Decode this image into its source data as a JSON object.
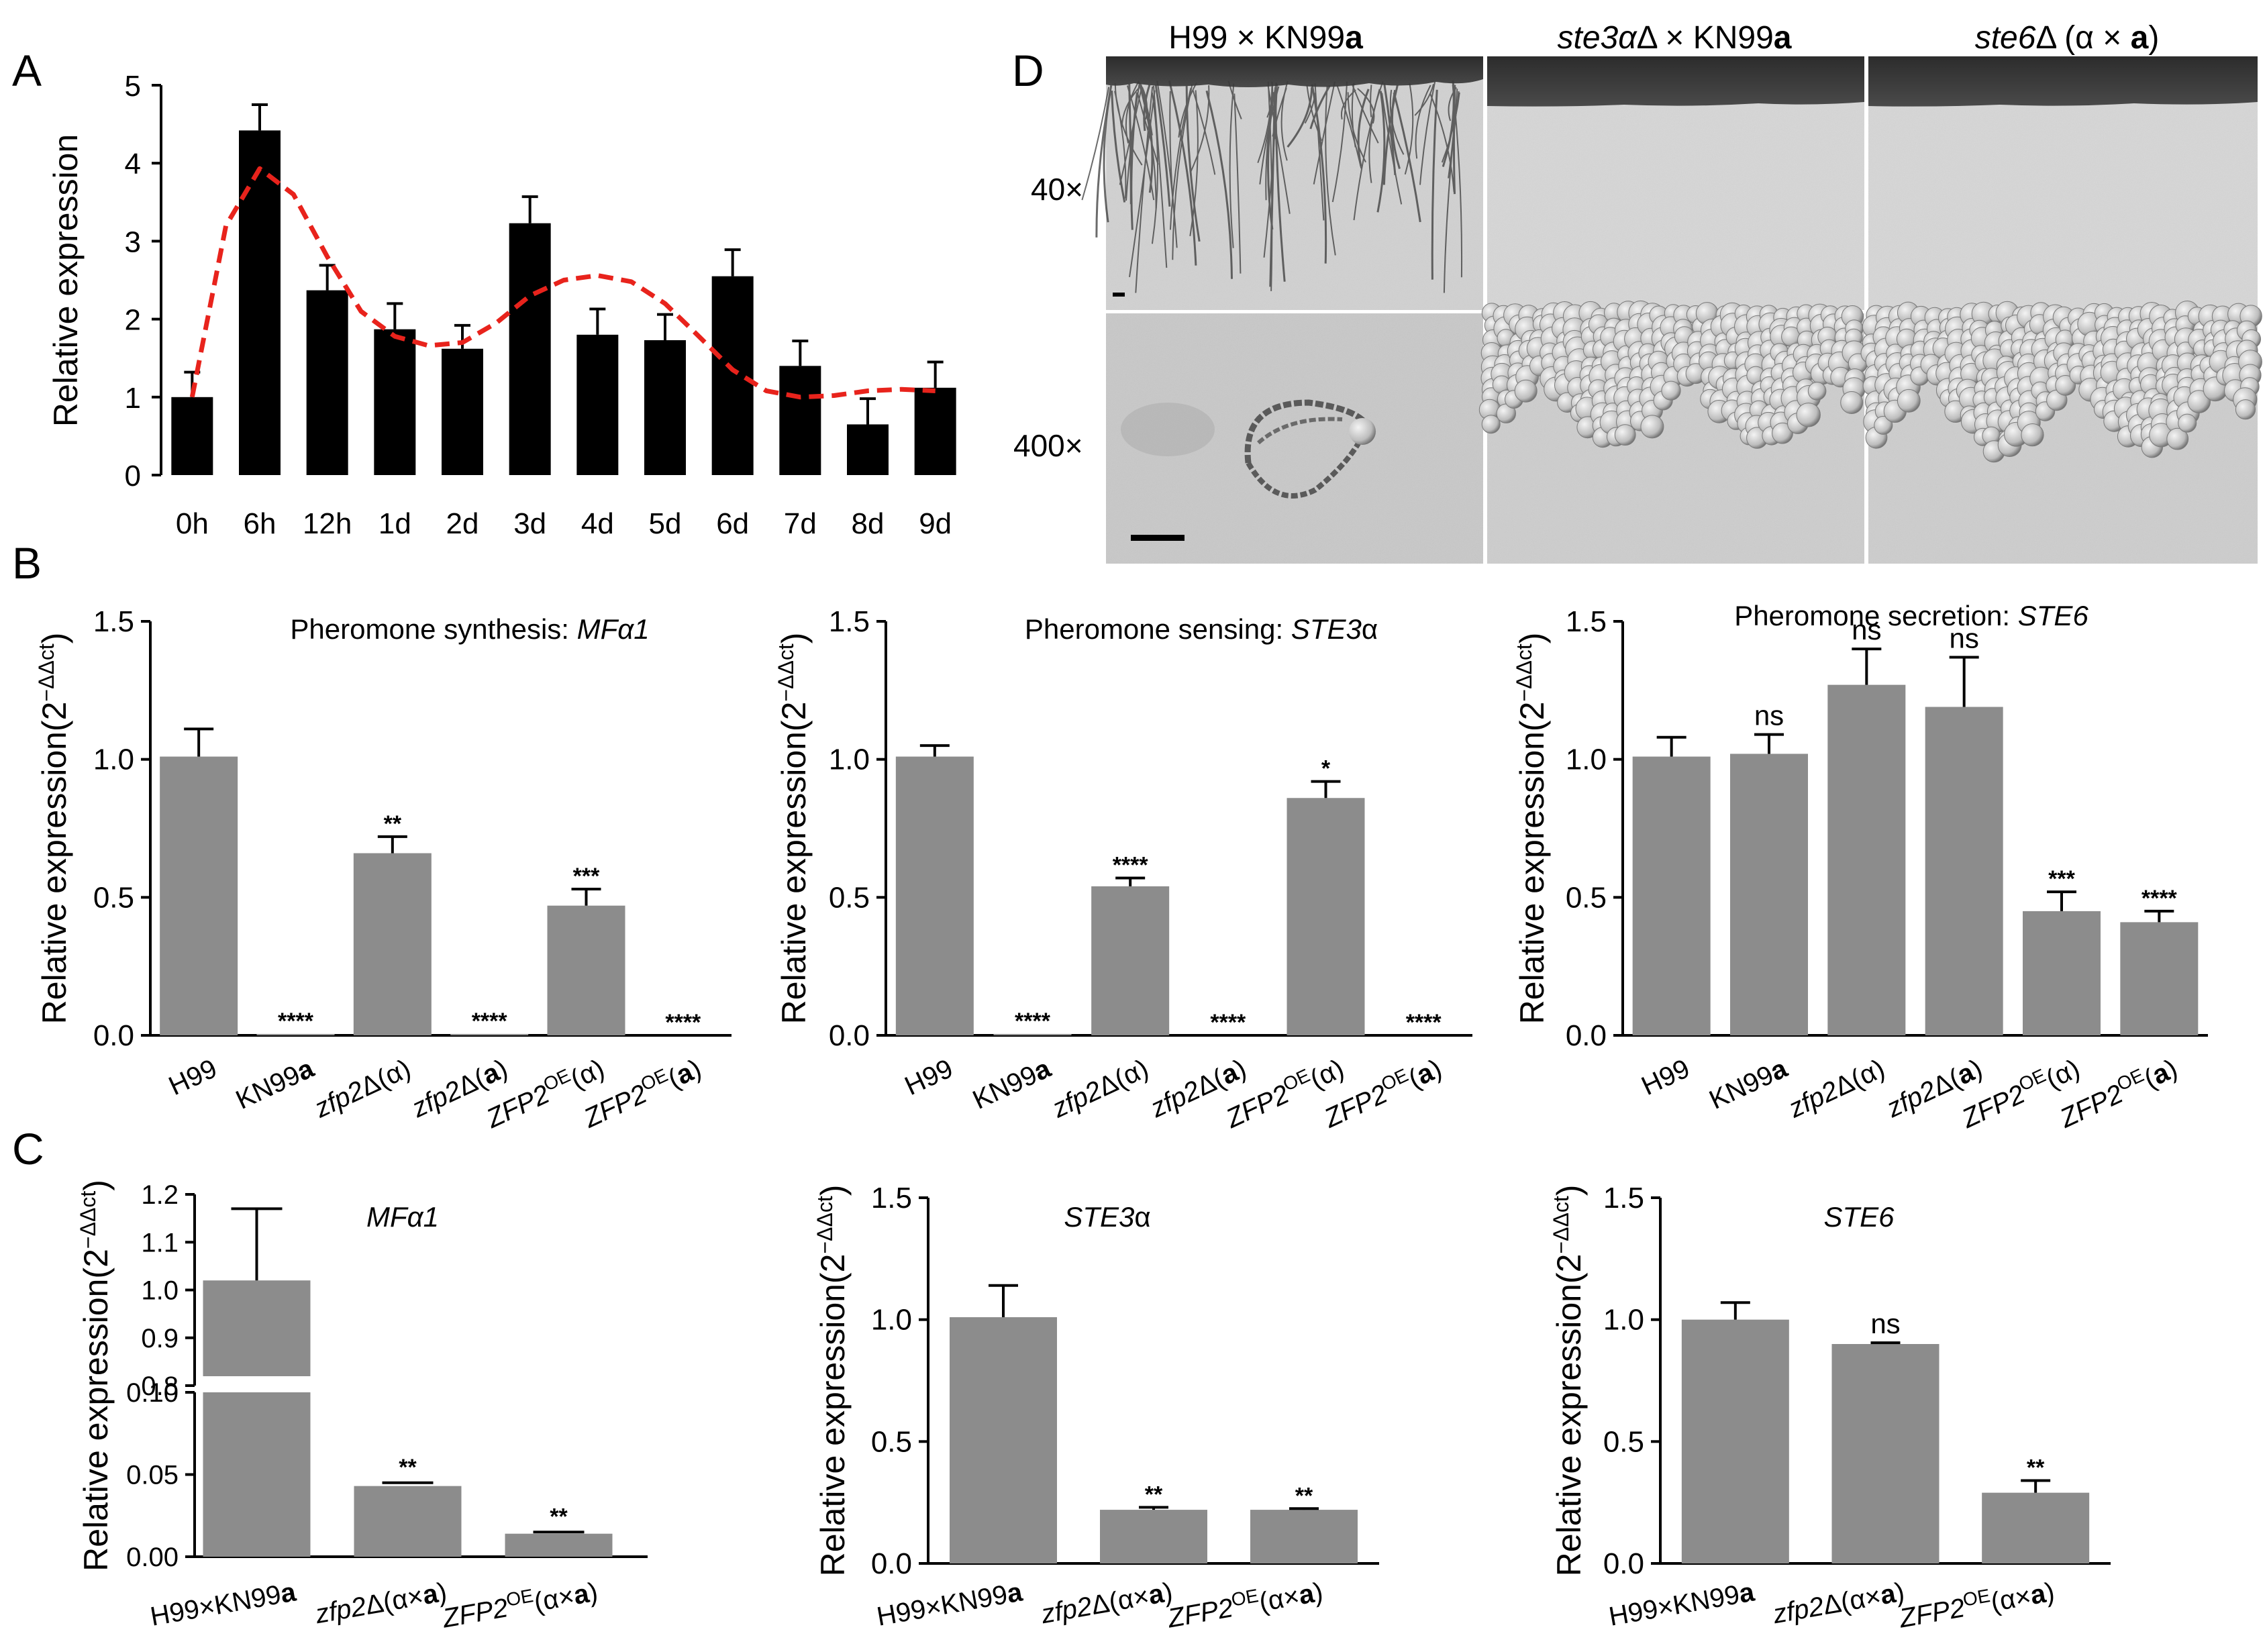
{
  "panel_labels": {
    "A": "A",
    "B": "B",
    "C": "C",
    "D": "D"
  },
  "colors": {
    "black_bar": "#000000",
    "gray_bar": "#8c8c8c",
    "fit_curve": "#e8231c"
  },
  "chart_data": [
    {
      "id": "A",
      "type": "bar",
      "categories": [
        "0h",
        "6h",
        "12h",
        "1d",
        "2d",
        "3d",
        "4d",
        "5d",
        "6d",
        "7d",
        "8d",
        "9d"
      ],
      "values": [
        1.0,
        4.42,
        2.37,
        1.87,
        1.62,
        3.23,
        1.8,
        1.73,
        2.55,
        1.4,
        0.65,
        1.12
      ],
      "errors": [
        0.32,
        0.33,
        0.32,
        0.33,
        0.3,
        0.34,
        0.33,
        0.33,
        0.34,
        0.32,
        0.33,
        0.33
      ],
      "trend": [
        [
          0,
          1.0
        ],
        [
          0.5,
          3.2
        ],
        [
          1,
          3.93
        ],
        [
          1.5,
          3.6
        ],
        [
          2,
          2.8
        ],
        [
          2.5,
          2.1
        ],
        [
          3,
          1.78
        ],
        [
          3.5,
          1.66
        ],
        [
          4,
          1.7
        ],
        [
          4.5,
          1.95
        ],
        [
          5,
          2.3
        ],
        [
          5.5,
          2.5
        ],
        [
          6,
          2.56
        ],
        [
          6.5,
          2.48
        ],
        [
          7,
          2.2
        ],
        [
          7.5,
          1.78
        ],
        [
          8,
          1.35
        ],
        [
          8.5,
          1.08
        ],
        [
          9,
          1.0
        ],
        [
          9.5,
          1.02
        ],
        [
          10,
          1.08
        ],
        [
          10.5,
          1.1
        ],
        [
          11,
          1.08
        ]
      ],
      "ylim": [
        0,
        5
      ],
      "yticks": [
        0,
        1,
        2,
        3,
        4,
        5
      ],
      "tick_labels": [
        "0",
        "1",
        "2",
        "3",
        "4",
        "5"
      ],
      "ylabel": "Relative expression",
      "title": ""
    },
    {
      "id": "B1",
      "type": "bar",
      "title_prefix": "Pheromone synthesis: ",
      "title_gene": "MFα1",
      "categories": [
        "H99",
        "KN99a",
        "zfp2Δ(α)",
        "zfp2Δ(a)",
        "ZFP2OE(α)",
        "ZFP2OE(a)"
      ],
      "values": [
        1.01,
        0.005,
        0.66,
        0.005,
        0.47,
        0.0
      ],
      "errors": [
        0.1,
        0.0,
        0.06,
        0.0,
        0.06,
        0.0
      ],
      "significance": [
        "",
        "****",
        "**",
        "****",
        "***",
        "****"
      ],
      "ylim": [
        0,
        1.5
      ],
      "yticks": [
        0,
        0.5,
        1.0,
        1.5
      ],
      "tick_labels": [
        "0.0",
        "0.5",
        "1.0",
        "1.5"
      ],
      "ylabel": "Relative expression(2",
      "ylabel_sup": "−ΔΔct",
      "ylabel_end": ")"
    },
    {
      "id": "B2",
      "type": "bar",
      "title_prefix": "Pheromone sensing: ",
      "title_gene": "STE3",
      "title_suffix": "α",
      "categories": [
        "H99",
        "KN99a",
        "zfp2Δ(α)",
        "zfp2Δ(a)",
        "ZFP2OE(α)",
        "ZFP2OE(a)"
      ],
      "values": [
        1.01,
        0.005,
        0.54,
        0.0,
        0.86,
        0.0
      ],
      "errors": [
        0.04,
        0.0,
        0.03,
        0.0,
        0.06,
        0.0
      ],
      "significance": [
        "",
        "****",
        "****",
        "****",
        "*",
        "****"
      ],
      "ylim": [
        0,
        1.5
      ],
      "yticks": [
        0,
        0.5,
        1.0,
        1.5
      ],
      "tick_labels": [
        "0.0",
        "0.5",
        "1.0",
        "1.5"
      ],
      "ylabel": "Relative expression(2",
      "ylabel_sup": "−ΔΔct",
      "ylabel_end": ")"
    },
    {
      "id": "B3",
      "type": "bar",
      "title_prefix": "Pheromone secretion: ",
      "title_gene": "STE6",
      "categories": [
        "H99",
        "KN99a",
        "zfp2Δ(α)",
        "zfp2Δ(a)",
        "ZFP2OE(α)",
        "ZFP2OE(a)"
      ],
      "values": [
        1.01,
        1.02,
        1.27,
        1.19,
        0.45,
        0.41
      ],
      "errors": [
        0.07,
        0.07,
        0.13,
        0.18,
        0.07,
        0.04
      ],
      "significance": [
        "",
        "ns",
        "ns",
        "ns",
        "***",
        "****"
      ],
      "ylim": [
        0,
        1.5
      ],
      "yticks": [
        0,
        0.5,
        1.0,
        1.5
      ],
      "tick_labels": [
        "0.0",
        "0.5",
        "1.0",
        "1.5"
      ],
      "ylabel": "Relative expression(2",
      "ylabel_sup": "−ΔΔct",
      "ylabel_end": ")"
    },
    {
      "id": "C1",
      "type": "bar",
      "title_gene": "MFα1",
      "broken_axis": true,
      "categories": [
        "H99×KN99a",
        "zfp2Δ(α×a)",
        "ZFP2OE(α×a)"
      ],
      "values": [
        1.02,
        0.043,
        0.014
      ],
      "errors": [
        0.15,
        0.002,
        0.001
      ],
      "significance": [
        "",
        "**",
        "**"
      ],
      "ylim_lower": [
        0,
        0.1
      ],
      "yticks_lower": [
        0,
        0.05,
        0.1
      ],
      "tick_labels_lower": [
        "0.00",
        "0.05",
        "0.10"
      ],
      "ylim_upper": [
        0.8,
        1.2
      ],
      "yticks_upper": [
        0.8,
        0.9,
        1.0,
        1.1,
        1.2
      ],
      "tick_labels_upper": [
        "0.8",
        "0.9",
        "1.0",
        "1.1",
        "1.2"
      ],
      "ylabel": "Relative expression(2",
      "ylabel_sup": "−ΔΔct",
      "ylabel_end": ")"
    },
    {
      "id": "C2",
      "type": "bar",
      "title_gene": "STE3",
      "title_suffix": "α",
      "categories": [
        "H99×KN99a",
        "zfp2Δ(α×a)",
        "ZFP2OE(α×a)"
      ],
      "values": [
        1.01,
        0.22,
        0.22
      ],
      "errors": [
        0.13,
        0.01,
        0.005
      ],
      "significance": [
        "",
        "**",
        "**"
      ],
      "ylim": [
        0,
        1.5
      ],
      "yticks": [
        0,
        0.5,
        1.0,
        1.5
      ],
      "tick_labels": [
        "0.0",
        "0.5",
        "1.0",
        "1.5"
      ],
      "ylabel": "Relative expression(2",
      "ylabel_sup": "−ΔΔct",
      "ylabel_end": ")"
    },
    {
      "id": "C3",
      "type": "bar",
      "title_gene": "STE6",
      "categories": [
        "H99×KN99a",
        "zfp2Δ(α×a)",
        "ZFP2OE(α×a)"
      ],
      "values": [
        1.0,
        0.9,
        0.29
      ],
      "errors": [
        0.07,
        0.005,
        0.05
      ],
      "significance": [
        "",
        "ns",
        "**"
      ],
      "ylim": [
        0,
        1.5
      ],
      "yticks": [
        0,
        0.5,
        1.0,
        1.5
      ],
      "tick_labels": [
        "0.0",
        "0.5",
        "1.0",
        "1.5"
      ],
      "ylabel": "Relative expression(2",
      "ylabel_sup": "−ΔΔct",
      "ylabel_end": ")"
    }
  ],
  "panel_d": {
    "col1": {
      "pre": "H99 × KN99",
      "bold": "a"
    },
    "col2": {
      "ital": "ste3α",
      "mid": "Δ × KN99",
      "bold": "a"
    },
    "col3": {
      "ital": "ste6",
      "mid": "Δ (α × ",
      "bold": "a",
      "post": ")"
    },
    "row1": "40×",
    "row2": "400×"
  }
}
